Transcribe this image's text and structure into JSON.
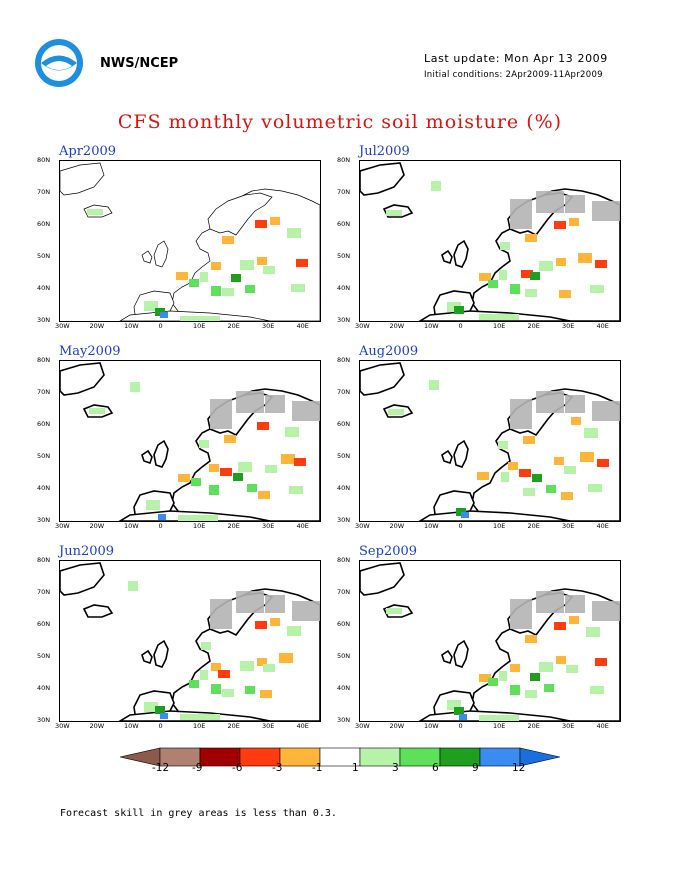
{
  "header": {
    "agency": "NWS/NCEP",
    "last_update": "Last update: Mon Apr 13 2009",
    "initial_conditions": "Initial conditions: 2Apr2009-11Apr2009",
    "title": "CFS monthly volumetric soil moisture (%)"
  },
  "axes": {
    "lat_labels": [
      "80N",
      "70N",
      "60N",
      "50N",
      "40N",
      "30N"
    ],
    "lon_labels": [
      "30W",
      "20W",
      "10W",
      "0",
      "10E",
      "20E",
      "30E",
      "40E"
    ]
  },
  "panels": [
    {
      "month": "Apr2009",
      "column": 0,
      "row": 0
    },
    {
      "month": "Jul2009",
      "column": 1,
      "row": 0
    },
    {
      "month": "May2009",
      "column": 0,
      "row": 1
    },
    {
      "month": "Aug2009",
      "column": 1,
      "row": 1
    },
    {
      "month": "Jun2009",
      "column": 0,
      "row": 2
    },
    {
      "month": "Sep2009",
      "column": 1,
      "row": 2
    }
  ],
  "legend": {
    "colors": [
      "#8b5a4a",
      "#b08070",
      "#a00000",
      "#ff3b10",
      "#ffb43a",
      "#ffffff",
      "#b6f2a8",
      "#5ee05a",
      "#1ea01e",
      "#3a8cf0",
      "#1a6fe0"
    ],
    "labels": [
      "-12",
      "-9",
      "-6",
      "-3",
      "-1",
      "1",
      "3",
      "6",
      "9",
      "12"
    ]
  },
  "footnote": "Forecast skill in grey areas is less than 0.3."
}
